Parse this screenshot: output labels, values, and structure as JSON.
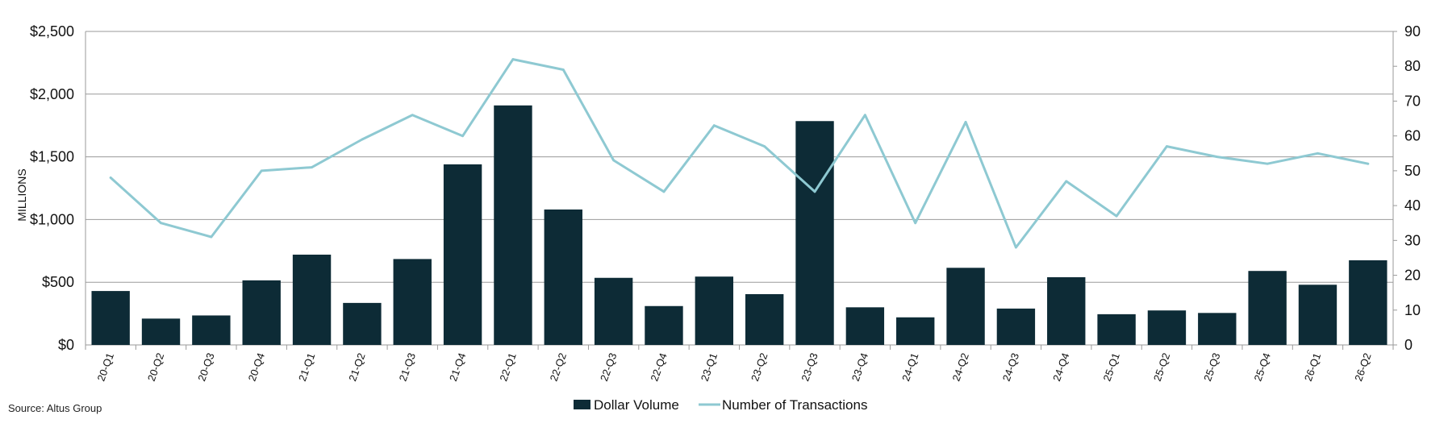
{
  "source": "Source: Altus Group",
  "chart_data": {
    "type": "bar",
    "title": "",
    "xlabel": "",
    "ylabel": "MILLIONS",
    "y2label": "",
    "categories": [
      "20-Q1",
      "20-Q2",
      "20-Q3",
      "20-Q4",
      "21-Q1",
      "21-Q2",
      "21-Q3",
      "21-Q4",
      "22-Q1",
      "22-Q2",
      "22-Q3",
      "22-Q4",
      "23-Q1",
      "23-Q2",
      "23-Q3",
      "23-Q4",
      "24-Q1",
      "24-Q2",
      "24-Q3",
      "24-Q4",
      "25-Q1",
      "25-Q2",
      "25-Q3",
      "25-Q4",
      "26-Q1",
      "26-Q2"
    ],
    "series": [
      {
        "name": "Dollar Volume",
        "type": "bar",
        "axis": "left",
        "color": "#0d2b36",
        "values": [
          430,
          210,
          235,
          515,
          720,
          335,
          685,
          1440,
          1910,
          1080,
          535,
          310,
          545,
          405,
          1785,
          300,
          220,
          615,
          290,
          540,
          245,
          275,
          255,
          590,
          480,
          675
        ]
      },
      {
        "name": "Number of Transactions",
        "type": "line",
        "axis": "right",
        "color": "#8ec9d2",
        "values": [
          48,
          35,
          31,
          50,
          51,
          59,
          66,
          60,
          82,
          79,
          53,
          44,
          63,
          57,
          44,
          66,
          35,
          64,
          28,
          47,
          37,
          57,
          54,
          52,
          55,
          52
        ]
      }
    ],
    "ylim": [
      0,
      2500
    ],
    "y2lim": [
      0,
      90
    ],
    "yticks": [
      "$0",
      "$500",
      "$1,000",
      "$1,500",
      "$2,000",
      "$2,500"
    ],
    "y2ticks": [
      "0",
      "10",
      "20",
      "30",
      "40",
      "50",
      "60",
      "70",
      "80",
      "90"
    ],
    "grid": true,
    "legend_position": "bottom"
  }
}
